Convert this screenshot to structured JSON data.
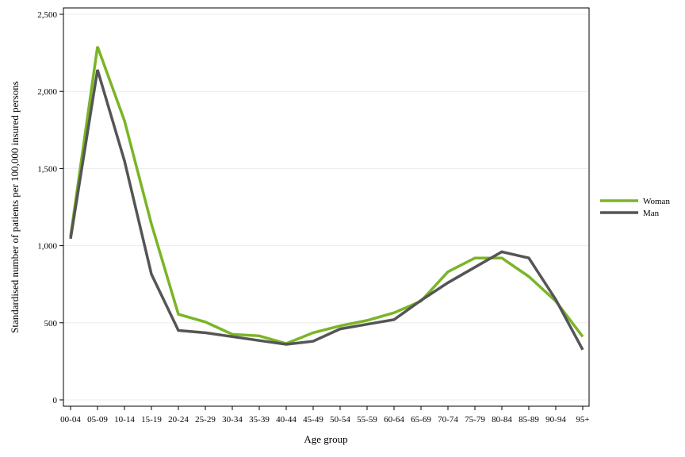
{
  "chart_data": {
    "type": "line",
    "title": "",
    "xlabel": "Age group",
    "ylabel": "Standardised number of patients per 100,000 insured persons",
    "ylim": [
      0,
      2500
    ],
    "yticks": [
      0,
      500,
      1000,
      1500,
      2000,
      2500
    ],
    "ytick_labels": [
      "0",
      "500",
      "1,000",
      "1,500",
      "2,000",
      "2,500"
    ],
    "grid": true,
    "legend_position": "right",
    "categories": [
      "00-04",
      "05-09",
      "10-14",
      "15-19",
      "20-24",
      "25-29",
      "30-34",
      "35-39",
      "40-44",
      "45-49",
      "50-54",
      "55-59",
      "60-64",
      "65-69",
      "70-74",
      "75-79",
      "80-84",
      "85-89",
      "90-94",
      "95+"
    ],
    "series": [
      {
        "name": "Woman",
        "color": "#7ab526",
        "values": [
          1060,
          2290,
          1810,
          1140,
          555,
          505,
          425,
          415,
          365,
          435,
          480,
          515,
          565,
          640,
          830,
          920,
          920,
          800,
          640,
          410
        ]
      },
      {
        "name": "Man",
        "color": "#555555",
        "values": [
          1045,
          2140,
          1550,
          815,
          450,
          435,
          410,
          385,
          360,
          380,
          460,
          490,
          520,
          645,
          760,
          860,
          960,
          920,
          650,
          325
        ]
      }
    ]
  }
}
